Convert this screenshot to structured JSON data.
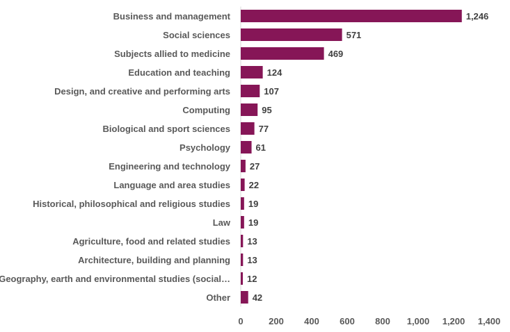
{
  "chart_data": {
    "type": "bar",
    "orientation": "horizontal",
    "categories": [
      "Business and management",
      "Social sciences",
      "Subjects allied to medicine",
      "Education and teaching",
      "Design, and creative and performing arts",
      "Computing",
      "Biological and sport sciences",
      "Psychology",
      "Engineering and technology",
      "Language and area studies",
      "Historical, philosophical and religious studies",
      "Law",
      "Agriculture, food and related studies",
      "Architecture, building and planning",
      "Geography, earth and environmental studies (social…",
      "Other"
    ],
    "values": [
      1246,
      571,
      469,
      124,
      107,
      95,
      77,
      61,
      27,
      22,
      19,
      19,
      13,
      13,
      12,
      42
    ],
    "value_labels": [
      "1,246",
      "571",
      "469",
      "124",
      "107",
      "95",
      "77",
      "61",
      "27",
      "22",
      "19",
      "19",
      "13",
      "13",
      "12",
      "42"
    ],
    "xlim": [
      0,
      1400
    ],
    "xticks": [
      0,
      200,
      400,
      600,
      800,
      1000,
      1200,
      1400
    ],
    "xtick_labels": [
      "0",
      "200",
      "400",
      "600",
      "800",
      "1,000",
      "1,200",
      "1,400"
    ],
    "grid": false,
    "legend": "none",
    "bar_color": "#861657"
  }
}
